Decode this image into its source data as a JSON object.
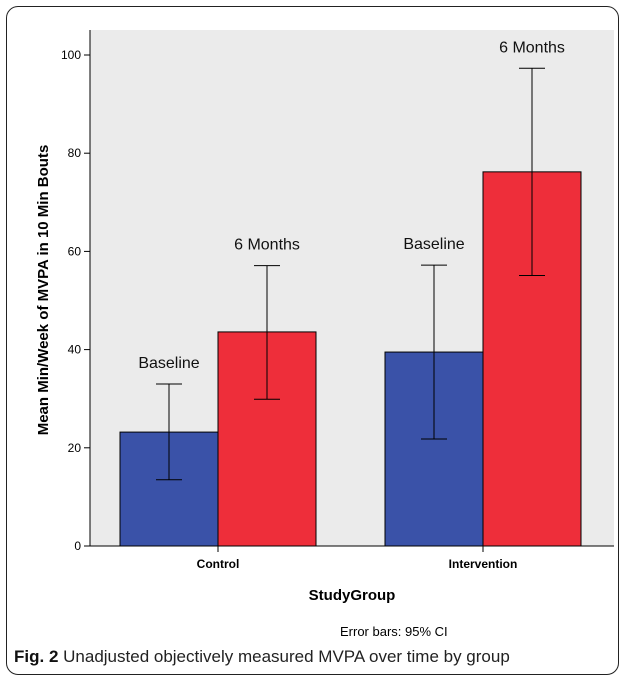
{
  "chart_data": {
    "type": "bar",
    "categories": [
      "Control",
      "Intervention"
    ],
    "series": [
      {
        "name": "Baseline",
        "color": "#3a52a8",
        "values": [
          23.2,
          39.5
        ],
        "ci_low": [
          13.5,
          21.8
        ],
        "ci_high": [
          33.0,
          57.2
        ]
      },
      {
        "name": "6 Months",
        "color": "#ee2e3a",
        "values": [
          43.6,
          76.2
        ],
        "ci_low": [
          29.9,
          55.1
        ],
        "ci_high": [
          57.1,
          97.3
        ]
      }
    ],
    "xlabel": "StudyGroup",
    "ylabel": "Mean Min/Week of MVPA in 10 Min Bouts",
    "ylim": [
      0,
      100
    ],
    "yticks": [
      "0",
      "20",
      "40",
      "60",
      "80",
      "100"
    ],
    "note": "Error bars: 95% CI",
    "plot_background": "#ebebeb"
  },
  "caption": {
    "label": "Fig. 2",
    "text": "Unadjusted objectively measured MVPA over time by group"
  }
}
